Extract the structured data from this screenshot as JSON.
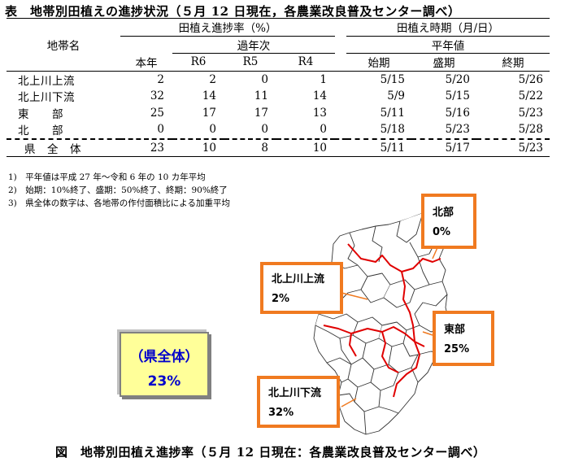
{
  "table_title": "表　地帯別田植えの進捗状況（５月 12 日現在，各農業改良普及センター調べ）",
  "table": {
    "area_header": "地帯名",
    "rate_header": "田植え進捗率（%）",
    "timing_header": "田植え時期（月/日）",
    "past_years_header": "過年次",
    "normal_header": "平年値",
    "col_headers": [
      "本年",
      "R6",
      "R5",
      "R4",
      "始期",
      "盛期",
      "終期"
    ],
    "rows": [
      {
        "name": "北上川上流",
        "cells": [
          "2",
          "2",
          "0",
          "1",
          "5/15",
          "5/20",
          "5/26"
        ]
      },
      {
        "name": "北上川下流",
        "cells": [
          "32",
          "14",
          "11",
          "14",
          "5/9",
          "5/15",
          "5/22"
        ]
      },
      {
        "name": "東　　部",
        "cells": [
          "25",
          "17",
          "17",
          "13",
          "5/11",
          "5/16",
          "5/23"
        ]
      },
      {
        "name": "北　　部",
        "cells": [
          "0",
          "0",
          "0",
          "0",
          "5/18",
          "5/23",
          "5/28"
        ]
      }
    ],
    "total": {
      "name": "県　全　体",
      "cells": [
        "23",
        "10",
        "8",
        "10",
        "5/11",
        "5/17",
        "5/23"
      ]
    }
  },
  "notes": [
    "1)　平年値は平成 27 年～令和 6 年の 10 カ年平均",
    "2)　始期：10%終了、盛期：50%終了、終期：90%終了",
    "3)　県全体の数字は、各地帯の作付面積比による加重平均"
  ],
  "map": {
    "callouts": [
      {
        "label": "北部",
        "value": "0%"
      },
      {
        "label": "北上川上流",
        "value": "2%"
      },
      {
        "label": "東部",
        "value": "25%"
      },
      {
        "label": "北上川下流",
        "value": "32%"
      }
    ],
    "prefecture": {
      "label": "（県全体）",
      "value": "23%"
    },
    "colors": {
      "callout_border": "#f07a20",
      "zone_border": "#e00000",
      "muni_border": "#333333",
      "pref_bg": "#ffff99",
      "pref_text": "#0000cc"
    }
  },
  "figure_caption": "図　地帯別田植え進捗率（５月 12 日現在：各農業改良普及センター調べ）"
}
